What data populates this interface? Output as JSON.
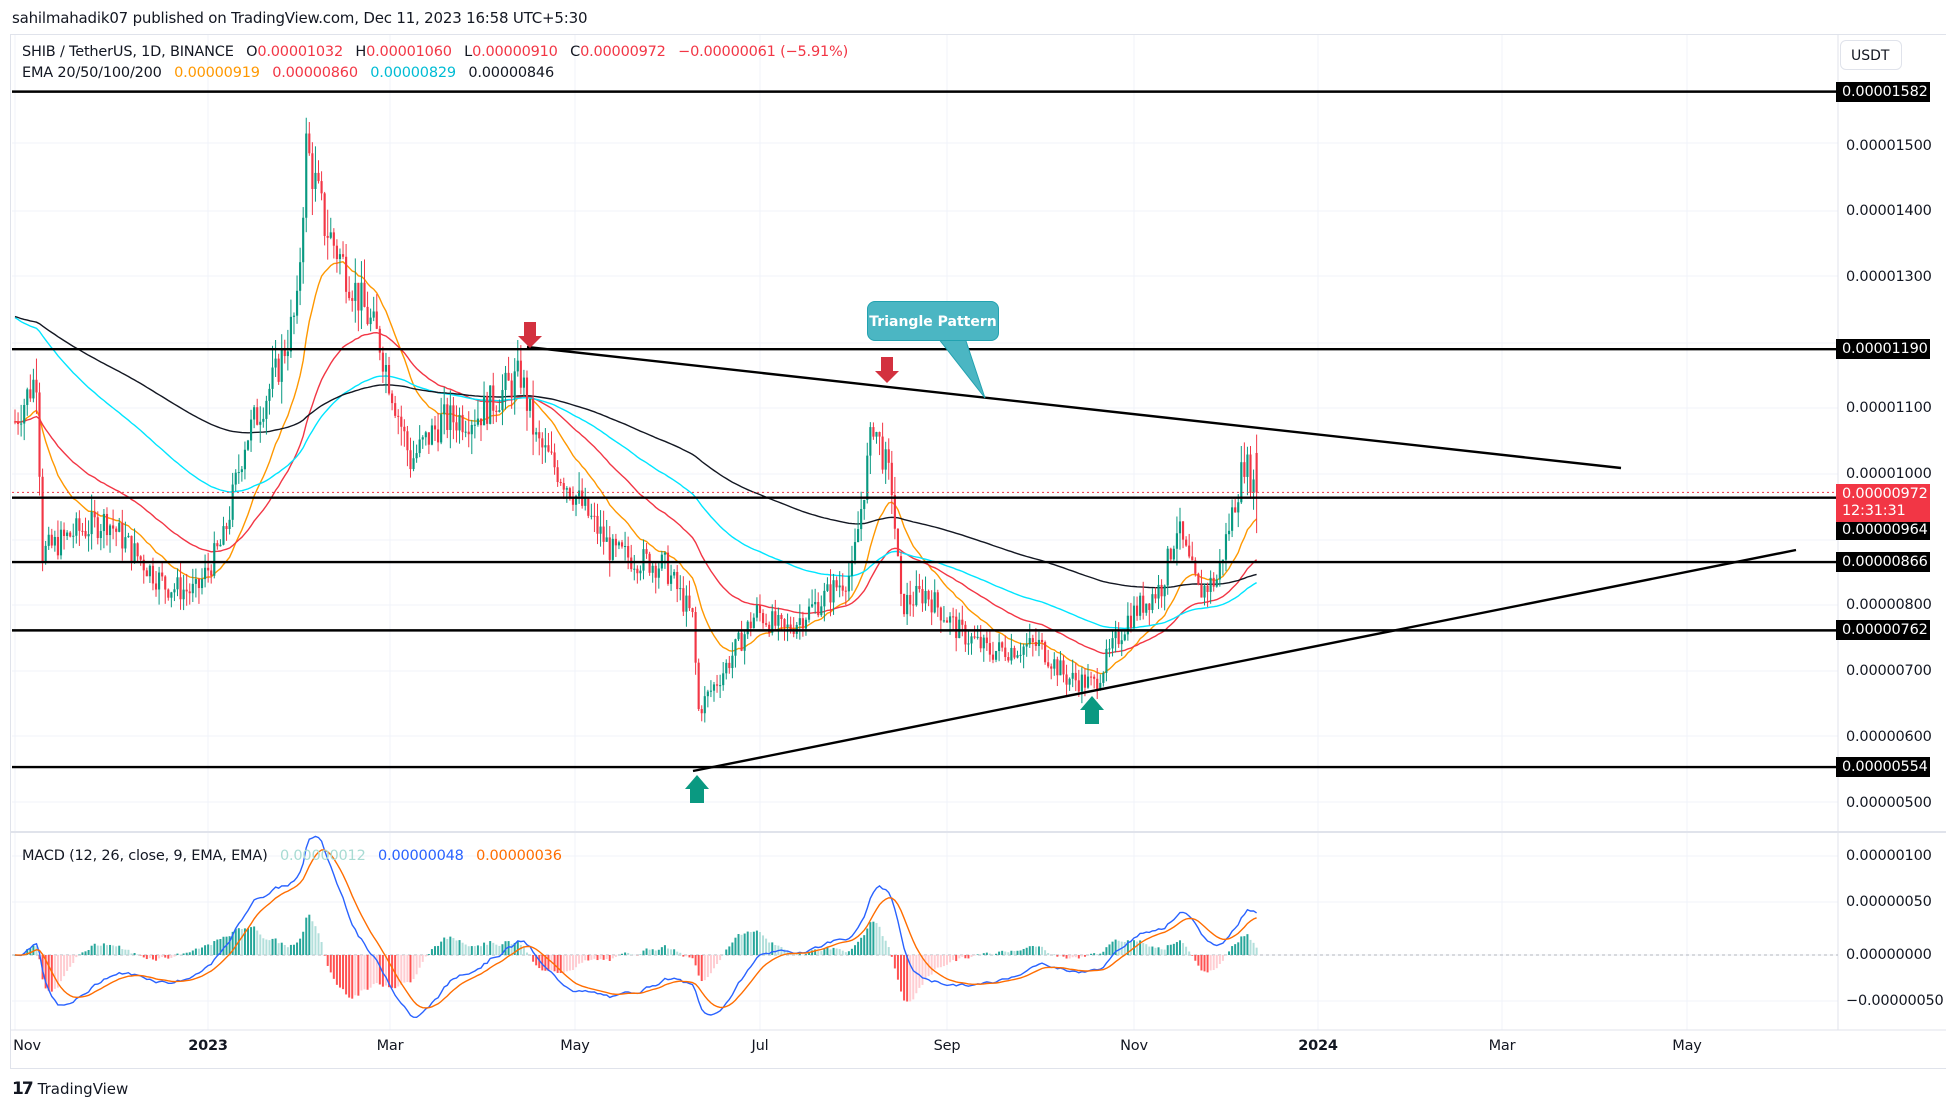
{
  "publisher": "sahilmahadik07 published on TradingView.com, Dec 11, 2023 16:58 UTC+5:30",
  "header": {
    "symbol": "SHIB / TetherUS, 1D, BINANCE",
    "open_label": "O",
    "open": "0.00001032",
    "high_label": "H",
    "high": "0.00001060",
    "low_label": "L",
    "low": "0.00000910",
    "close_label": "C",
    "close": "0.00000972",
    "change": "−0.00000061 (−5.91%)",
    "ema_label": "EMA 20/50/100/200",
    "ema20": "0.00000919",
    "ema50": "0.00000860",
    "ema100": "0.00000829",
    "ema200": "0.00000846",
    "currency": "USDT"
  },
  "macd": {
    "label": "MACD (12, 26, close, 9, EMA, EMA)",
    "histogram": "0.00000012",
    "macd": "0.00000048",
    "signal": "0.00000036"
  },
  "colors": {
    "up": "#089981",
    "down": "#f23645",
    "ema20": "#ff9800",
    "ema50": "#f23645",
    "ema100": "#00e5ff",
    "ema200": "#131722",
    "macd": "#2962ff",
    "signal": "#ff6d00",
    "callout": "#4bb6c3"
  },
  "price_axis": {
    "ticks": [
      "0.00001500",
      "0.00001400",
      "0.00001300",
      "0.00001100",
      "0.00001000",
      "0.00000800",
      "0.00000700",
      "0.00000600",
      "0.00000500"
    ],
    "levels": [
      "0.00001582",
      "0.00001190",
      "0.00000964",
      "0.00000866",
      "0.00000762",
      "0.00000554"
    ],
    "live_price": "0.00000972",
    "countdown": "12:31:31"
  },
  "macd_axis": {
    "ticks": [
      "0.00000100",
      "0.00000050",
      "0.00000000",
      "−0.00000050"
    ]
  },
  "time_axis": {
    "labels": [
      "Nov",
      "2023",
      "Mar",
      "May",
      "Jul",
      "Sep",
      "Nov",
      "2024",
      "Mar",
      "May"
    ]
  },
  "annotation": {
    "callout": "Triangle Pattern"
  },
  "footer": {
    "logo": "17",
    "brand": "TradingView"
  },
  "chart_data": {
    "type": "candlestick",
    "title": "SHIB / TetherUS, 1D, BINANCE",
    "xlabel": "",
    "ylabel": "USDT",
    "x_range": [
      "2022-11",
      "2024-06"
    ],
    "ylim": [
      4.7e-06,
      1.63e-05
    ],
    "price_path": [
      [
        "2022-11-01",
        1.08e-05
      ],
      [
        "2022-11-08",
        1.15e-05
      ],
      [
        "2022-11-10",
        8.8e-06
      ],
      [
        "2022-11-20",
        9.1e-06
      ],
      [
        "2022-12-01",
        9.3e-06
      ],
      [
        "2022-12-10",
        8.8e-06
      ],
      [
        "2022-12-20",
        8.3e-06
      ],
      [
        "2022-12-30",
        8.2e-06
      ],
      [
        "2023-01-08",
        9e-06
      ],
      [
        "2023-01-15",
        1.05e-05
      ],
      [
        "2023-01-25",
        1.15e-05
      ],
      [
        "2023-02-01",
        1.25e-05
      ],
      [
        "2023-02-04",
        1.5e-05
      ],
      [
        "2023-02-10",
        1.38e-05
      ],
      [
        "2023-02-20",
        1.28e-05
      ],
      [
        "2023-02-28",
        1.2e-05
      ],
      [
        "2023-03-10",
        1.02e-05
      ],
      [
        "2023-03-20",
        1.08e-05
      ],
      [
        "2023-04-01",
        1.09e-05
      ],
      [
        "2023-04-15",
        1.15e-05
      ],
      [
        "2023-04-20",
        1.05e-05
      ],
      [
        "2023-05-01",
        9.8e-06
      ],
      [
        "2023-05-15",
        8.8e-06
      ],
      [
        "2023-06-01",
        8.6e-06
      ],
      [
        "2023-06-10",
        7.8e-06
      ],
      [
        "2023-06-12",
        6.4e-06
      ],
      [
        "2023-06-20",
        7e-06
      ],
      [
        "2023-07-01",
        7.9e-06
      ],
      [
        "2023-07-10",
        7.6e-06
      ],
      [
        "2023-07-20",
        8e-06
      ],
      [
        "2023-08-01",
        8.5e-06
      ],
      [
        "2023-08-08",
        1.08e-05
      ],
      [
        "2023-08-14",
        9.8e-06
      ],
      [
        "2023-08-17",
        8e-06
      ],
      [
        "2023-08-25",
        8.2e-06
      ],
      [
        "2023-09-05",
        7.6e-06
      ],
      [
        "2023-09-15",
        7.3e-06
      ],
      [
        "2023-10-01",
        7.4e-06
      ],
      [
        "2023-10-10",
        6.9e-06
      ],
      [
        "2023-10-19",
        6.8e-06
      ],
      [
        "2023-10-30",
        7.8e-06
      ],
      [
        "2023-11-10",
        8.3e-06
      ],
      [
        "2023-11-15",
        9.2e-06
      ],
      [
        "2023-11-22",
        8.2e-06
      ],
      [
        "2023-11-28",
        8.4e-06
      ],
      [
        "2023-12-02",
        9.2e-06
      ],
      [
        "2023-12-07",
        1.02e-05
      ],
      [
        "2023-12-11",
        9.72e-06
      ]
    ],
    "emas": [
      {
        "name": "EMA 20",
        "value": 9.19e-06,
        "color": "#ff9800"
      },
      {
        "name": "EMA 50",
        "value": 8.6e-06,
        "color": "#f23645"
      },
      {
        "name": "EMA 100",
        "value": 8.29e-06,
        "color": "#00e5ff"
      },
      {
        "name": "EMA 200",
        "value": 8.46e-06,
        "color": "#131722"
      }
    ],
    "horizontal_levels": [
      1.582e-05,
      1.19e-05,
      9.64e-06,
      8.66e-06,
      7.62e-06,
      5.54e-06
    ],
    "trendlines": [
      {
        "name": "upper",
        "from": [
          "2023-04-20",
          1.19e-05
        ],
        "to": [
          "2024-03-20",
          1.005e-05
        ]
      },
      {
        "name": "lower",
        "from": [
          "2023-06-10",
          5.54e-06
        ],
        "to": [
          "2024-06-15",
          8.8e-06
        ]
      }
    ],
    "markers": [
      {
        "type": "sell-arrow",
        "date": "2023-04-20",
        "price": 1.19e-05
      },
      {
        "type": "sell-arrow",
        "date": "2023-08-14",
        "price": 1.14e-05
      },
      {
        "type": "buy-arrow",
        "date": "2023-06-10",
        "price": 5.54e-06
      },
      {
        "type": "buy-arrow",
        "date": "2023-10-19",
        "price": 6.65e-06
      }
    ],
    "macd_panel": {
      "macd": 4.8e-07,
      "signal": 3.6e-07,
      "histogram": 1.2e-07,
      "ylim": [
        -7.5e-07,
        1.25e-06
      ]
    }
  }
}
